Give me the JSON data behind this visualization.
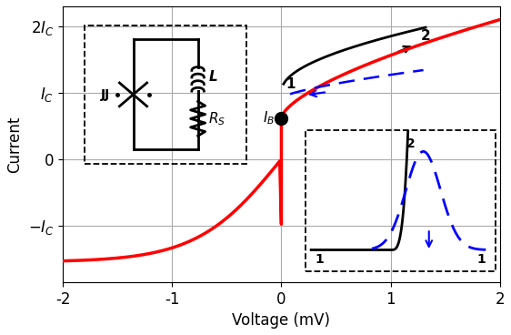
{
  "xlabel": "Voltage (mV)",
  "ylabel": "Current",
  "xlim": [
    -2,
    2
  ],
  "ylim_low": -1.85,
  "ylim_high": 2.3,
  "xticks": [
    -2,
    -1,
    0,
    1,
    2
  ],
  "Ic": 1.0,
  "IB": 0.62,
  "bg_color": "#ffffff",
  "grid_color": "#aaaaaa"
}
